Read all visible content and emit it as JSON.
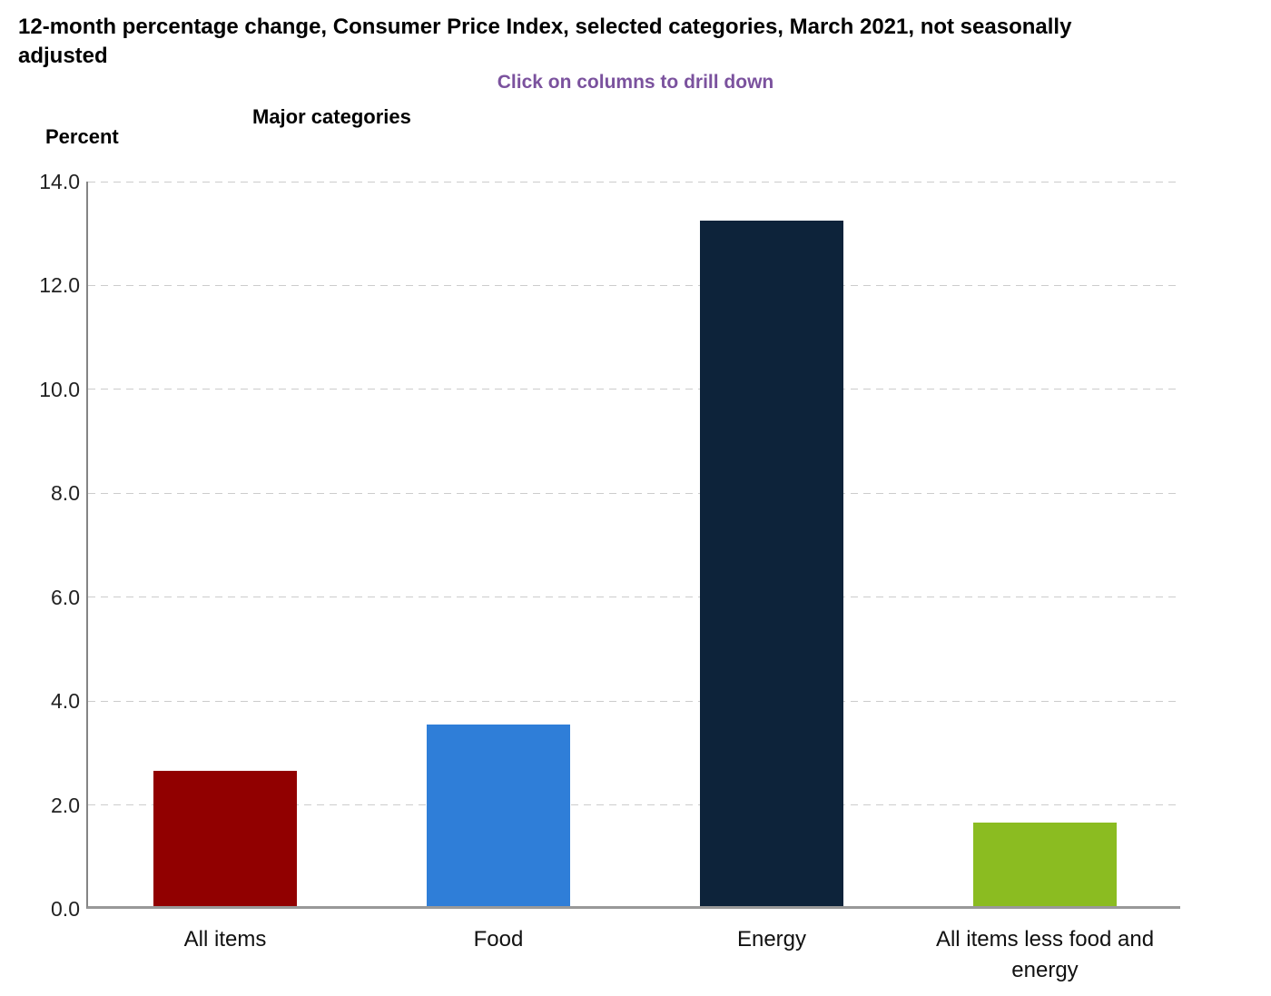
{
  "chart_data": {
    "type": "bar",
    "title": "12-month percentage change, Consumer Price Index, selected categories, March 2021, not seasonally adjusted",
    "subtitle": "Click on columns to drill down",
    "xlabel": "Major categories",
    "ylabel": "Percent",
    "categories": [
      "All items",
      "Food",
      "Energy",
      "All items less food and energy"
    ],
    "values": [
      2.6,
      3.5,
      13.2,
      1.6
    ],
    "bar_colors": [
      "#910000",
      "#2f7ed8",
      "#0d233a",
      "#8bbc21"
    ],
    "ylim": [
      0,
      14
    ],
    "ytick_step": 2,
    "ytick_labels": [
      "0.0",
      "2.0",
      "4.0",
      "6.0",
      "8.0",
      "10.0",
      "12.0",
      "14.0"
    ],
    "grid": "horizontal-dashed",
    "legend": "none"
  },
  "colors": {
    "note_purple": "#7b529e",
    "gridline_gray": "#cccccc",
    "y_axis_gray": "#858585",
    "x_axis_gray": "#999999",
    "title_black": "#000000",
    "tick_text": "#222222"
  }
}
